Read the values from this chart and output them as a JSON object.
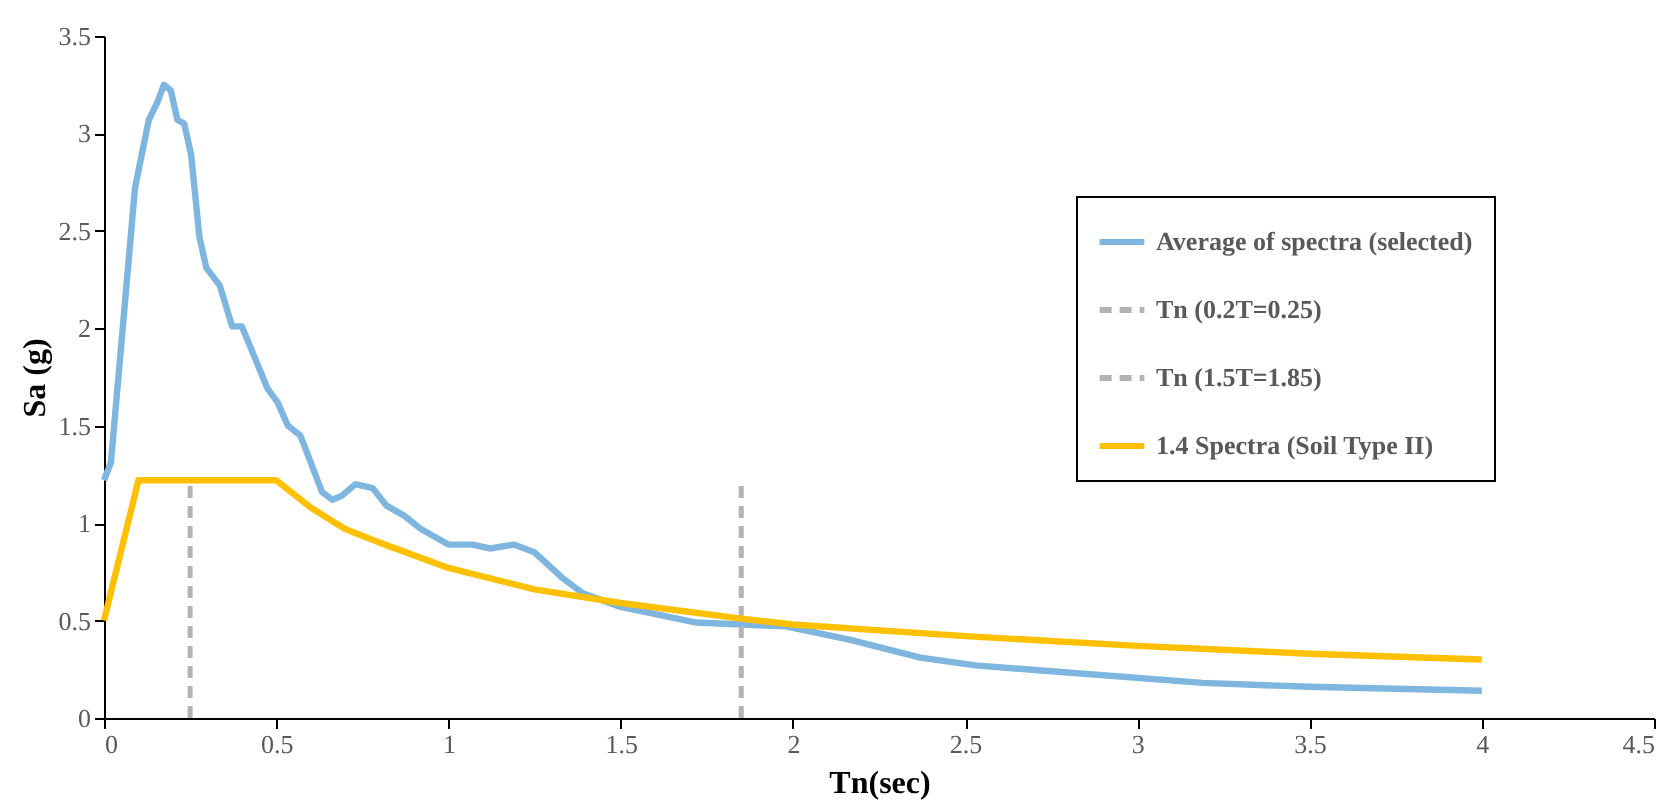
{
  "chart_data": {
    "type": "line",
    "xlabel": "Tn(sec)",
    "ylabel": "Sa (g)",
    "xlim": [
      0,
      4.5
    ],
    "ylim": [
      0,
      3.5
    ],
    "xticks": [
      0,
      0.5,
      1,
      1.5,
      2,
      2.5,
      3,
      3.5,
      4,
      4.5
    ],
    "yticks": [
      0,
      0.5,
      1,
      1.5,
      2,
      2.5,
      3,
      3.5
    ],
    "grid": false,
    "legend": "top right",
    "marker": "none",
    "series": [
      {
        "name": "Average of spectra (selected)",
        "color": "#7eb6e0",
        "line_style": "solid",
        "x": [
          0,
          0.02,
          0.09,
          0.13,
          0.155,
          0.174,
          0.194,
          0.213,
          0.233,
          0.253,
          0.277,
          0.297,
          0.336,
          0.372,
          0.4,
          0.475,
          0.504,
          0.534,
          0.57,
          0.633,
          0.663,
          0.69,
          0.73,
          0.78,
          0.82,
          0.87,
          0.92,
          1.0,
          1.07,
          1.12,
          1.19,
          1.25,
          1.33,
          1.39,
          1.5,
          1.72,
          1.98,
          2.17,
          2.37,
          2.53,
          2.75,
          3.19,
          3.5,
          4.0
        ],
        "values": [
          1.22,
          1.31,
          2.72,
          3.07,
          3.16,
          3.25,
          3.22,
          3.07,
          3.05,
          2.89,
          2.47,
          2.31,
          2.22,
          2.01,
          2.01,
          1.69,
          1.62,
          1.5,
          1.45,
          1.16,
          1.12,
          1.14,
          1.2,
          1.18,
          1.09,
          1.04,
          0.97,
          0.89,
          0.89,
          0.87,
          0.89,
          0.85,
          0.72,
          0.64,
          0.57,
          0.49,
          0.47,
          0.4,
          0.31,
          0.27,
          0.24,
          0.18,
          0.16,
          0.14
        ]
      },
      {
        "name": "Tn (0.2T=0.25)",
        "color": "#b3b3b3",
        "line_style": "dashed",
        "x": [
          0.25,
          0.25
        ],
        "values": [
          0,
          1.2
        ]
      },
      {
        "name": "Tn (1.5T=1.85)",
        "color": "#b3b3b3",
        "line_style": "dashed",
        "x": [
          1.85,
          1.85
        ],
        "values": [
          0,
          1.2
        ]
      },
      {
        "name": "1.4 Spectra (Soil Type II)",
        "color": "#ffc000",
        "line_style": "solid",
        "x": [
          0,
          0.1,
          0.5,
          0.6,
          0.7,
          0.8,
          1,
          1.25,
          1.5,
          1.85,
          2,
          2.5,
          3,
          3.5,
          4
        ],
        "values": [
          0.5,
          1.22,
          1.22,
          1.08,
          0.97,
          0.9,
          0.77,
          0.66,
          0.59,
          0.51,
          0.48,
          0.42,
          0.37,
          0.33,
          0.3
        ]
      }
    ]
  }
}
